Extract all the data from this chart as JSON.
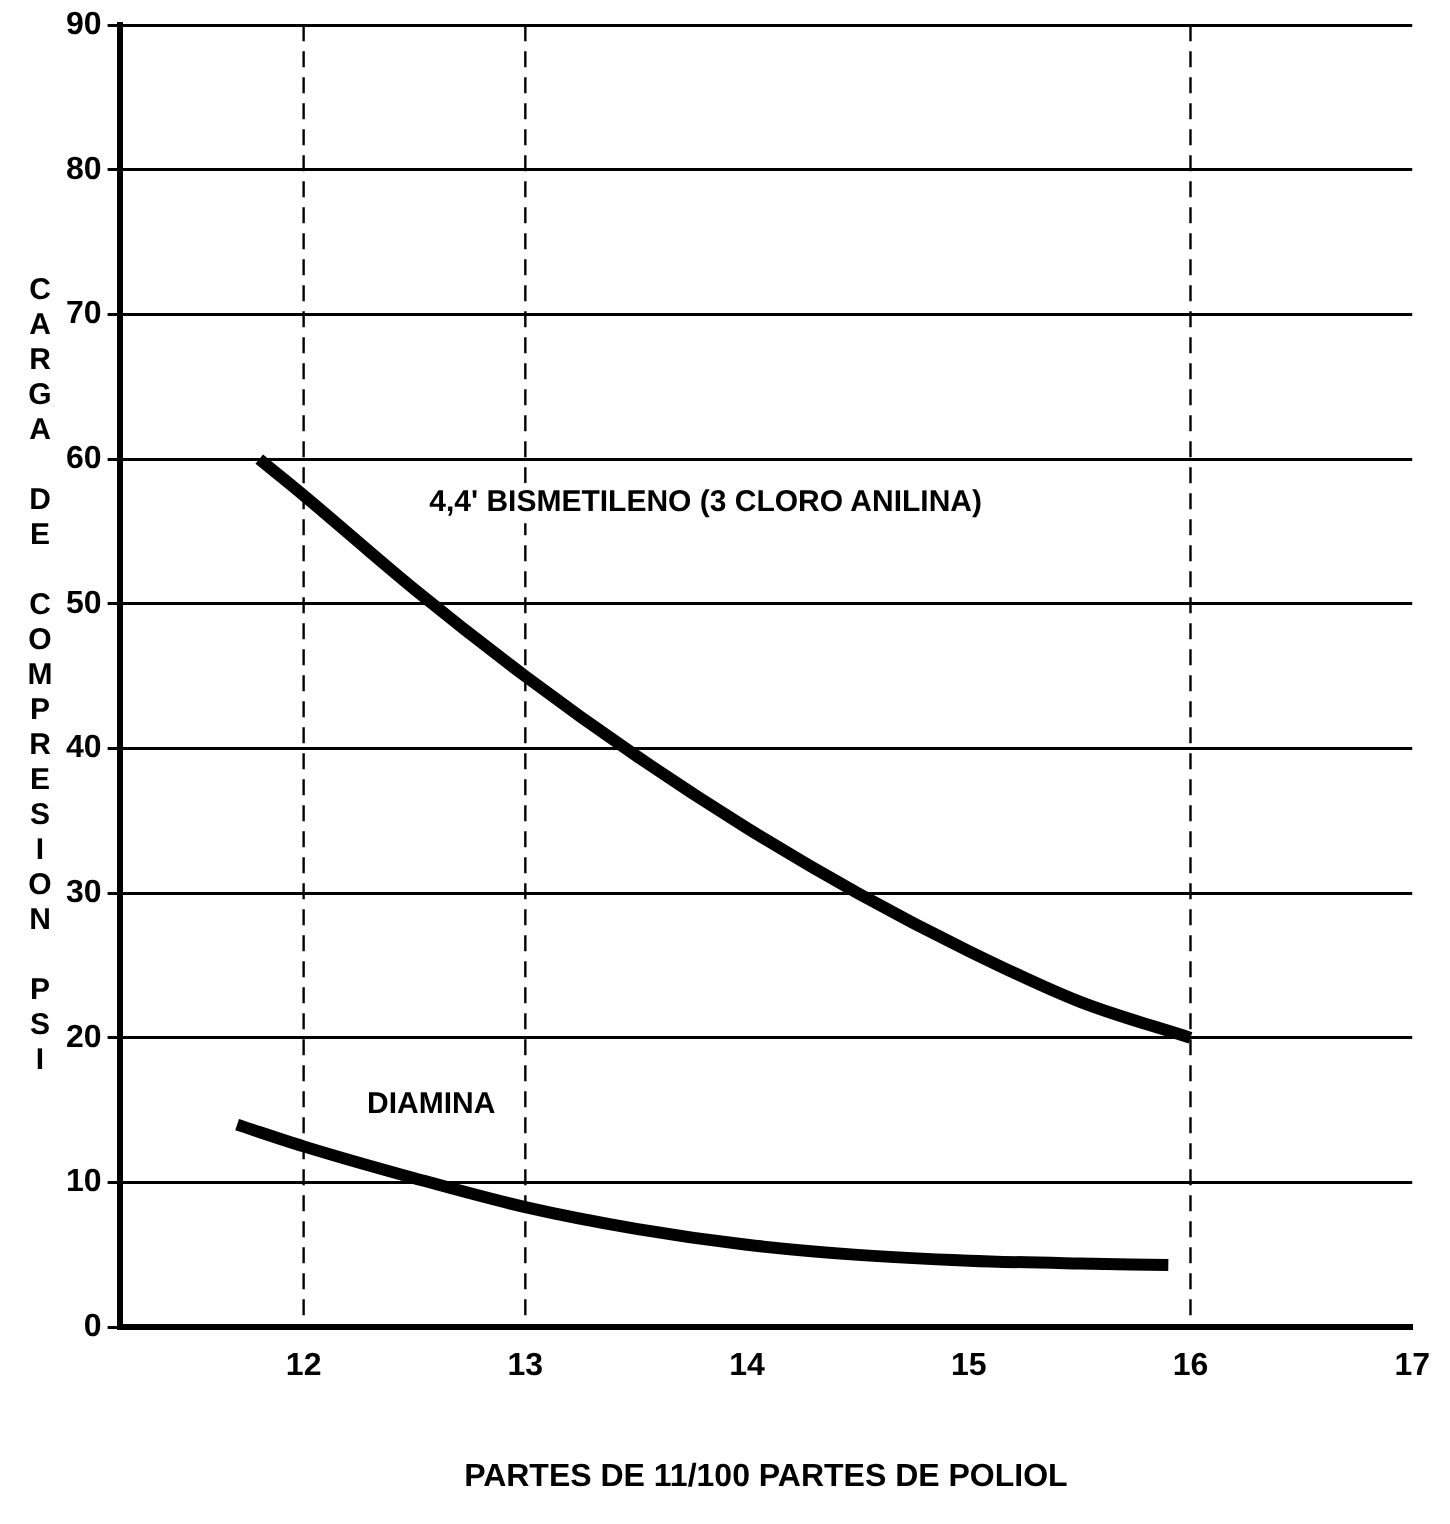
{
  "chart_data": {
    "type": "line",
    "xlabel": "PARTES DE 11/100 PARTES DE POLIOL",
    "ylabel": "CARGA DE COMPRESION PSI",
    "xlim": [
      11.17,
      17
    ],
    "xticks": [
      12,
      13,
      14,
      15,
      16,
      17
    ],
    "ylim": [
      0,
      90
    ],
    "yticks": [
      0,
      10,
      20,
      30,
      40,
      50,
      60,
      70,
      80,
      90
    ],
    "grid": "y",
    "legend": false,
    "marker": "none",
    "line_style": "solid",
    "ref_lines": [
      {
        "axis": "x",
        "value": 12,
        "line_style": "dashed"
      },
      {
        "axis": "x",
        "value": 13,
        "line_style": "dashed"
      },
      {
        "axis": "x",
        "value": 16,
        "line_style": "dashed"
      }
    ],
    "series": [
      {
        "name": "4,4' BISMETILENO (3 CLORO ANILINA)",
        "color": "#000000",
        "x": [
          11.8,
          12,
          12.5,
          13,
          13.5,
          14,
          14.5,
          15,
          15.5,
          16
        ],
        "values": [
          60,
          57.5,
          51,
          45,
          39.5,
          34.5,
          30,
          26,
          22.5,
          20
        ]
      },
      {
        "name": "DIAMINA",
        "color": "#000000",
        "x": [
          11.7,
          12,
          12.5,
          13,
          13.5,
          14,
          14.5,
          15,
          15.5,
          15.9
        ],
        "values": [
          14,
          12.5,
          10.3,
          8.3,
          6.8,
          5.7,
          5,
          4.6,
          4.4,
          4.3
        ]
      }
    ]
  }
}
